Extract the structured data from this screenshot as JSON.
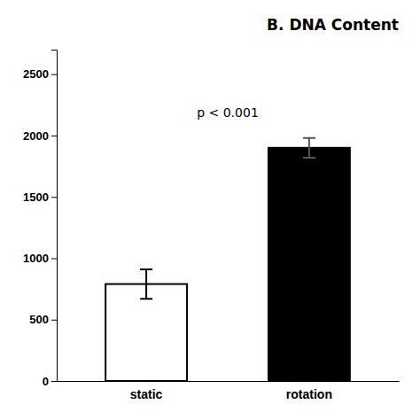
{
  "chart_data": {
    "type": "bar",
    "title": "B. DNA Content",
    "categories": [
      "static",
      "rotation"
    ],
    "values": [
      790,
      1900
    ],
    "errors": [
      120,
      80
    ],
    "colors": [
      "#ffffff",
      "#000000"
    ],
    "ylim": [
      0,
      2700
    ],
    "yticks": [
      0,
      500,
      1000,
      1500,
      2000,
      2500
    ],
    "annotations": [
      "p < 0.001"
    ],
    "grid": false
  }
}
